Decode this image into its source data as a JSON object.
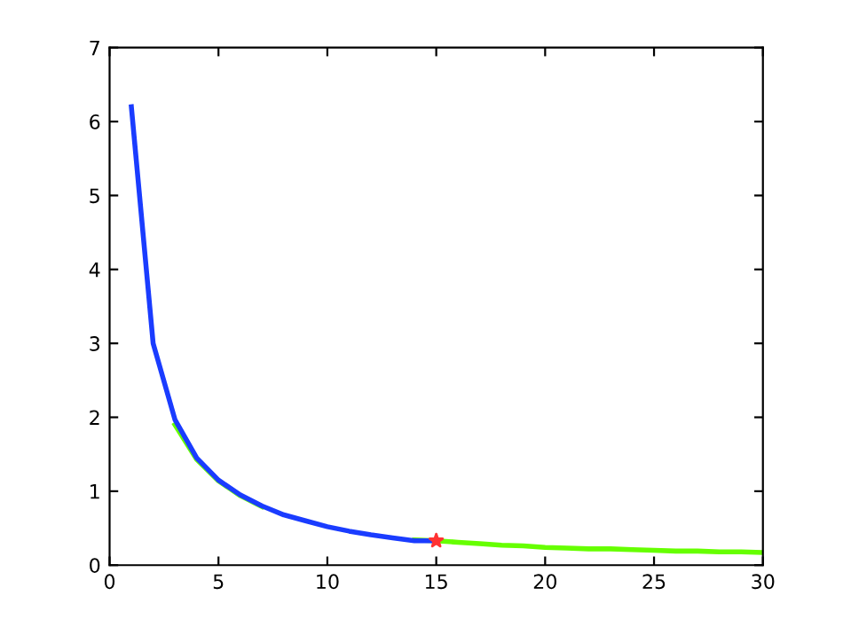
{
  "chart_data": {
    "type": "line",
    "xlim": [
      0,
      30
    ],
    "ylim": [
      0,
      7
    ],
    "xticks": [
      0,
      5,
      10,
      15,
      20,
      25,
      30
    ],
    "yticks": [
      0,
      1,
      2,
      3,
      4,
      5,
      6,
      7
    ],
    "grid": false,
    "line_style": "solid",
    "series": [
      {
        "color": "#66ff00",
        "x": [
          3,
          4,
          5,
          6,
          7,
          8,
          9,
          10,
          11,
          12,
          13,
          14,
          15,
          16,
          17,
          18,
          19,
          20,
          21,
          22,
          23,
          24,
          25,
          26,
          27,
          28,
          29,
          30
        ],
        "values": [
          1.9,
          1.43,
          1.14,
          0.94,
          0.79,
          null,
          null,
          null,
          null,
          null,
          null,
          0.34,
          0.33,
          0.31,
          0.29,
          0.27,
          0.26,
          0.24,
          0.23,
          0.22,
          0.22,
          0.21,
          0.2,
          0.19,
          0.19,
          0.18,
          0.18,
          0.17
        ]
      },
      {
        "color": "#1a3cff",
        "x": [
          1,
          2,
          3,
          4,
          5,
          6,
          7,
          8,
          9,
          10,
          11,
          12,
          13,
          14,
          15
        ],
        "values": [
          6.2,
          3.0,
          1.97,
          1.45,
          1.15,
          0.95,
          0.8,
          0.68,
          0.6,
          0.52,
          0.46,
          0.41,
          0.37,
          0.33,
          0.33
        ]
      },
      {
        "type": "scatter",
        "marker": "star",
        "color": "#ff3333",
        "x": [
          15
        ],
        "values": [
          0.33
        ]
      }
    ]
  }
}
